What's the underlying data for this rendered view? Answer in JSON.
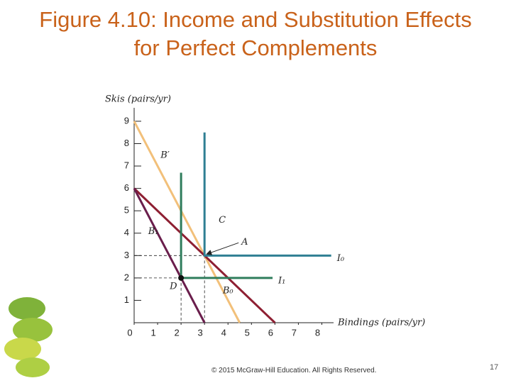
{
  "chart_data": {
    "type": "line",
    "title": "Figure 4.10: Income and Substitution Effects for Perfect Complements",
    "x_label": "Bindings (pairs/yr)",
    "y_label": "Skis (pairs/yr)",
    "xlim": [
      0,
      8.5
    ],
    "ylim": [
      0,
      9.6
    ],
    "xticks": [
      0,
      1,
      2,
      3,
      4,
      5,
      6,
      7,
      8
    ],
    "yticks": [
      1,
      2,
      3,
      4,
      5,
      6,
      7,
      8,
      9
    ],
    "series": [
      {
        "name": "B′",
        "color": "#f2c07a",
        "x": [
          0,
          4.5
        ],
        "values": [
          9,
          0
        ]
      },
      {
        "name": "B₀",
        "color": "#8e1f32",
        "x": [
          0,
          6
        ],
        "values": [
          6,
          0
        ]
      },
      {
        "name": "B₁",
        "color": "#6a1e4c",
        "x": [
          0,
          3
        ],
        "values": [
          6,
          0
        ]
      },
      {
        "name": "I₀",
        "color": "#2f7f93",
        "x": [
          3,
          3,
          8.4
        ],
        "values": [
          8.5,
          3,
          3
        ]
      },
      {
        "name": "I₁",
        "color": "#2f7d5c",
        "x": [
          2,
          2,
          5.9
        ],
        "values": [
          6.7,
          2,
          2
        ]
      }
    ],
    "points": [
      {
        "label": "A",
        "x": 3,
        "y": 3,
        "marker": false
      },
      {
        "label": "D",
        "x": 2,
        "y": 2,
        "marker": true
      }
    ],
    "annotation": "C"
  },
  "footer": "© 2015 McGraw-Hill Education. All Rights Reserved.",
  "page_number": "17"
}
